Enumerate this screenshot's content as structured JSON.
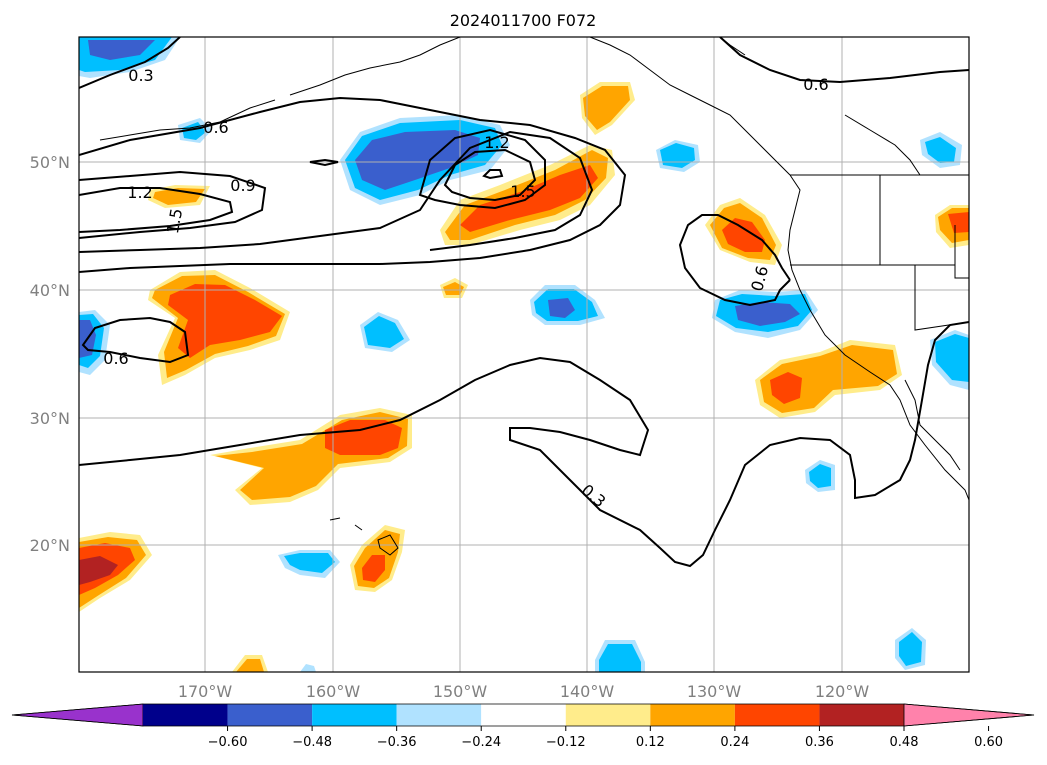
{
  "title": "2024011700 F072",
  "lat_labels": [
    "20°N",
    "30°N",
    "40°N",
    "50°N"
  ],
  "lon_labels": [
    "170°W",
    "160°W",
    "150°W",
    "140°W",
    "130°W",
    "120°W"
  ],
  "colorbar": {
    "ticks": [
      "−0.60",
      "−0.48",
      "−0.36",
      "−0.24",
      "−0.12",
      "0.12",
      "0.24",
      "0.36",
      "0.48",
      "0.60"
    ],
    "colors": [
      "#9932cc",
      "#00008b",
      "#3a5fcd",
      "#00bfff",
      "#b0e2ff",
      "#ffffff",
      "#ffec8b",
      "#ffa500",
      "#ff4500",
      "#b22222",
      "#ff82ab"
    ]
  },
  "contour_labels": [
    "0.3",
    "0.6",
    "1.2",
    "0.9",
    "1.5",
    "1.2",
    "1.5",
    "0.6",
    "0.6",
    "0.6",
    "0.3"
  ],
  "colors": {
    "grid": "#b0b0b0",
    "coast": "#000000",
    "contour": "#000000"
  }
}
